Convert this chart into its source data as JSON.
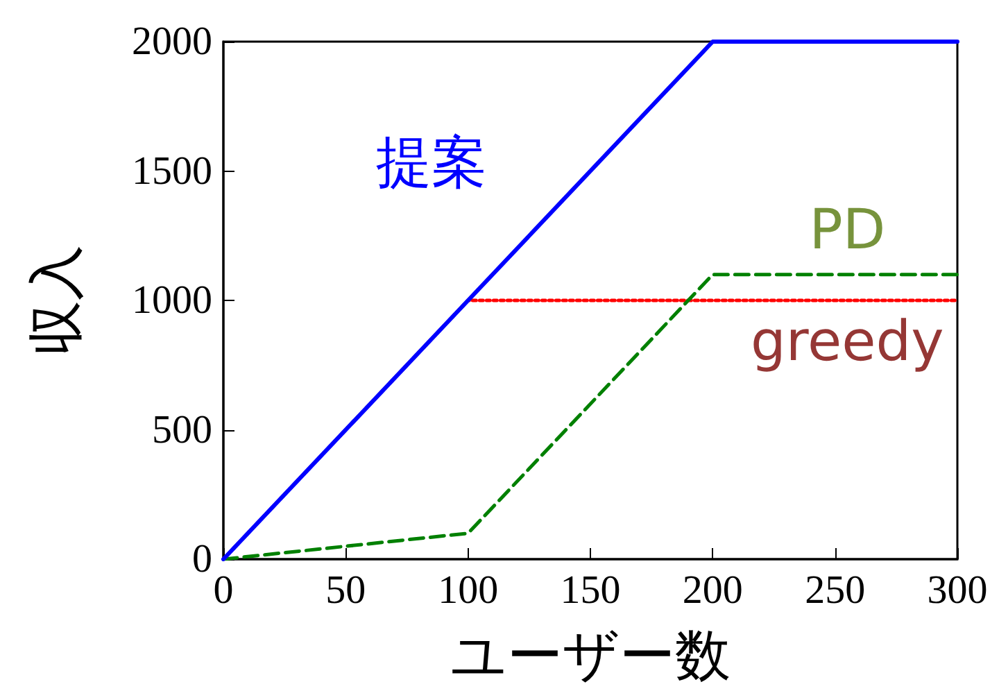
{
  "chart_data": {
    "type": "line",
    "xlabel": "ユーザー数",
    "ylabel": "収入",
    "x": [
      0,
      100,
      200,
      300
    ],
    "xlim": [
      0,
      300
    ],
    "xticks": [
      0,
      50,
      100,
      150,
      200,
      250,
      300
    ],
    "ylim": [
      0,
      2000
    ],
    "yticks": [
      0,
      500,
      1000,
      1500,
      2000
    ],
    "grid": false,
    "legend": false,
    "series": [
      {
        "name": "提案",
        "color": "#0000ff",
        "values": [
          0,
          1000,
          2000,
          2000
        ],
        "line_style": "solid"
      },
      {
        "name": "PD",
        "color": "#008000",
        "values": [
          0,
          100,
          1100,
          1100
        ],
        "line_style": "dashed"
      },
      {
        "name": "greedy",
        "color": "#ff0000",
        "values": [
          0,
          1000,
          1000,
          1000
        ],
        "line_style": "dotted"
      }
    ]
  }
}
